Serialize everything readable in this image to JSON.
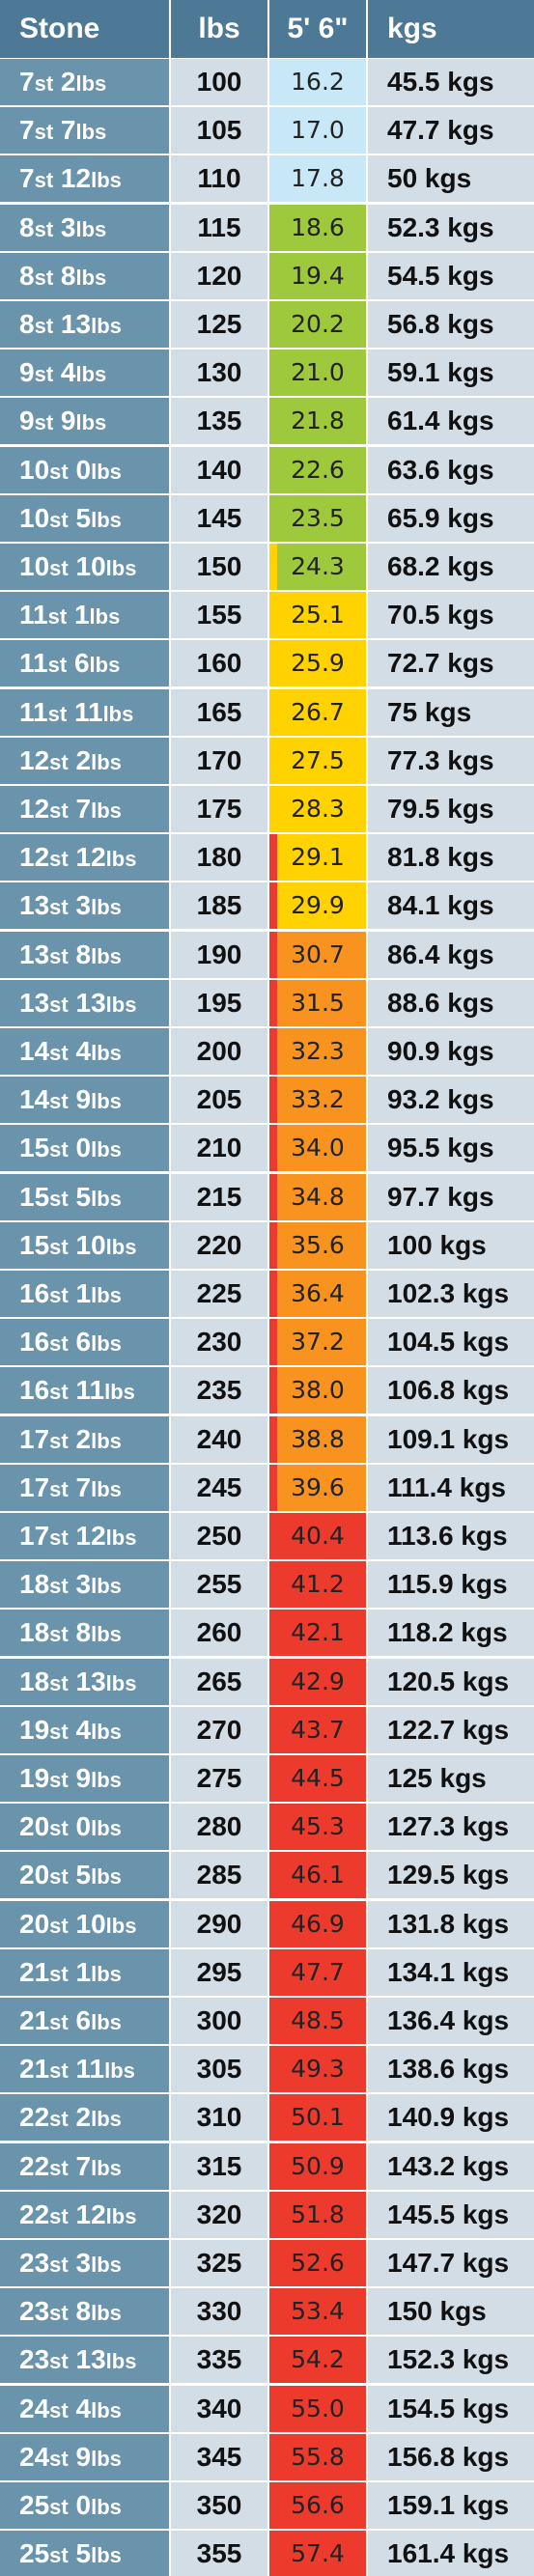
{
  "headers": {
    "stone": "Stone",
    "lbs": "lbs",
    "height": "5' 6\"",
    "kgs": "kgs"
  },
  "units": {
    "stone": "st",
    "pounds": "lbs"
  },
  "colors": {
    "header": "#4d7996",
    "stone_col": "#6a93ac",
    "light_col": "#d2dde6",
    "underweight": "#c9e8f7",
    "healthy": "#9fc93c",
    "overweight": "#ffd200",
    "obese": "#f7931e",
    "very_obese": "#ec3a2d"
  },
  "rows": [
    {
      "st": "7",
      "lb": "2",
      "lbs": "100",
      "bmi": "16.2",
      "kgs": "45.5 kgs"
    },
    {
      "st": "7",
      "lb": "7",
      "lbs": "105",
      "bmi": "17.0",
      "kgs": "47.7 kgs"
    },
    {
      "st": "7",
      "lb": "12",
      "lbs": "110",
      "bmi": "17.8",
      "kgs": "50 kgs"
    },
    {
      "st": "8",
      "lb": "3",
      "lbs": "115",
      "bmi": "18.6",
      "kgs": "52.3 kgs"
    },
    {
      "st": "8",
      "lb": "8",
      "lbs": "120",
      "bmi": "19.4",
      "kgs": "54.5 kgs"
    },
    {
      "st": "8",
      "lb": "13",
      "lbs": "125",
      "bmi": "20.2",
      "kgs": "56.8 kgs"
    },
    {
      "st": "9",
      "lb": "4",
      "lbs": "130",
      "bmi": "21.0",
      "kgs": "59.1 kgs"
    },
    {
      "st": "9",
      "lb": "9",
      "lbs": "135",
      "bmi": "21.8",
      "kgs": "61.4 kgs"
    },
    {
      "st": "10",
      "lb": "0",
      "lbs": "140",
      "bmi": "22.6",
      "kgs": "63.6 kgs"
    },
    {
      "st": "10",
      "lb": "5",
      "lbs": "145",
      "bmi": "23.5",
      "kgs": "65.9 kgs"
    },
    {
      "st": "10",
      "lb": "10",
      "lbs": "150",
      "bmi": "24.3",
      "kgs": "68.2 kgs"
    },
    {
      "st": "11",
      "lb": "1",
      "lbs": "155",
      "bmi": "25.1",
      "kgs": "70.5 kgs"
    },
    {
      "st": "11",
      "lb": "6",
      "lbs": "160",
      "bmi": "25.9",
      "kgs": "72.7 kgs"
    },
    {
      "st": "11",
      "lb": "11",
      "lbs": "165",
      "bmi": "26.7",
      "kgs": "75 kgs"
    },
    {
      "st": "12",
      "lb": "2",
      "lbs": "170",
      "bmi": "27.5",
      "kgs": "77.3 kgs"
    },
    {
      "st": "12",
      "lb": "7",
      "lbs": "175",
      "bmi": "28.3",
      "kgs": "79.5 kgs"
    },
    {
      "st": "12",
      "lb": "12",
      "lbs": "180",
      "bmi": "29.1",
      "kgs": "81.8 kgs"
    },
    {
      "st": "13",
      "lb": "3",
      "lbs": "185",
      "bmi": "29.9",
      "kgs": "84.1 kgs"
    },
    {
      "st": "13",
      "lb": "8",
      "lbs": "190",
      "bmi": "30.7",
      "kgs": "86.4 kgs"
    },
    {
      "st": "13",
      "lb": "13",
      "lbs": "195",
      "bmi": "31.5",
      "kgs": "88.6 kgs"
    },
    {
      "st": "14",
      "lb": "4",
      "lbs": "200",
      "bmi": "32.3",
      "kgs": "90.9 kgs"
    },
    {
      "st": "14",
      "lb": "9",
      "lbs": "205",
      "bmi": "33.2",
      "kgs": "93.2 kgs"
    },
    {
      "st": "15",
      "lb": "0",
      "lbs": "210",
      "bmi": "34.0",
      "kgs": "95.5 kgs"
    },
    {
      "st": "15",
      "lb": "5",
      "lbs": "215",
      "bmi": "34.8",
      "kgs": "97.7 kgs"
    },
    {
      "st": "15",
      "lb": "10",
      "lbs": "220",
      "bmi": "35.6",
      "kgs": "100 kgs"
    },
    {
      "st": "16",
      "lb": "1",
      "lbs": "225",
      "bmi": "36.4",
      "kgs": "102.3 kgs"
    },
    {
      "st": "16",
      "lb": "6",
      "lbs": "230",
      "bmi": "37.2",
      "kgs": "104.5 kgs"
    },
    {
      "st": "16",
      "lb": "11",
      "lbs": "235",
      "bmi": "38.0",
      "kgs": "106.8 kgs"
    },
    {
      "st": "17",
      "lb": "2",
      "lbs": "240",
      "bmi": "38.8",
      "kgs": "109.1 kgs"
    },
    {
      "st": "17",
      "lb": "7",
      "lbs": "245",
      "bmi": "39.6",
      "kgs": "111.4 kgs"
    },
    {
      "st": "17",
      "lb": "12",
      "lbs": "250",
      "bmi": "40.4",
      "kgs": "113.6 kgs"
    },
    {
      "st": "18",
      "lb": "3",
      "lbs": "255",
      "bmi": "41.2",
      "kgs": "115.9 kgs"
    },
    {
      "st": "18",
      "lb": "8",
      "lbs": "260",
      "bmi": "42.1",
      "kgs": "118.2 kgs"
    },
    {
      "st": "18",
      "lb": "13",
      "lbs": "265",
      "bmi": "42.9",
      "kgs": "120.5 kgs"
    },
    {
      "st": "19",
      "lb": "4",
      "lbs": "270",
      "bmi": "43.7",
      "kgs": "122.7 kgs"
    },
    {
      "st": "19",
      "lb": "9",
      "lbs": "275",
      "bmi": "44.5",
      "kgs": "125 kgs"
    },
    {
      "st": "20",
      "lb": "0",
      "lbs": "280",
      "bmi": "45.3",
      "kgs": "127.3 kgs"
    },
    {
      "st": "20",
      "lb": "5",
      "lbs": "285",
      "bmi": "46.1",
      "kgs": "129.5 kgs"
    },
    {
      "st": "20",
      "lb": "10",
      "lbs": "290",
      "bmi": "46.9",
      "kgs": "131.8 kgs"
    },
    {
      "st": "21",
      "lb": "1",
      "lbs": "295",
      "bmi": "47.7",
      "kgs": "134.1 kgs"
    },
    {
      "st": "21",
      "lb": "6",
      "lbs": "300",
      "bmi": "48.5",
      "kgs": "136.4 kgs"
    },
    {
      "st": "21",
      "lb": "11",
      "lbs": "305",
      "bmi": "49.3",
      "kgs": "138.6 kgs"
    },
    {
      "st": "22",
      "lb": "2",
      "lbs": "310",
      "bmi": "50.1",
      "kgs": "140.9 kgs"
    },
    {
      "st": "22",
      "lb": "7",
      "lbs": "315",
      "bmi": "50.9",
      "kgs": "143.2 kgs"
    },
    {
      "st": "22",
      "lb": "12",
      "lbs": "320",
      "bmi": "51.8",
      "kgs": "145.5 kgs"
    },
    {
      "st": "23",
      "lb": "3",
      "lbs": "325",
      "bmi": "52.6",
      "kgs": "147.7 kgs"
    },
    {
      "st": "23",
      "lb": "8",
      "lbs": "330",
      "bmi": "53.4",
      "kgs": "150 kgs"
    },
    {
      "st": "23",
      "lb": "13",
      "lbs": "335",
      "bmi": "54.2",
      "kgs": "152.3 kgs"
    },
    {
      "st": "24",
      "lb": "4",
      "lbs": "340",
      "bmi": "55.0",
      "kgs": "154.5 kgs"
    },
    {
      "st": "24",
      "lb": "9",
      "lbs": "345",
      "bmi": "55.8",
      "kgs": "156.8 kgs"
    },
    {
      "st": "25",
      "lb": "0",
      "lbs": "350",
      "bmi": "56.6",
      "kgs": "159.1 kgs"
    },
    {
      "st": "25",
      "lb": "5",
      "lbs": "355",
      "bmi": "57.4",
      "kgs": "161.4 kgs"
    }
  ]
}
